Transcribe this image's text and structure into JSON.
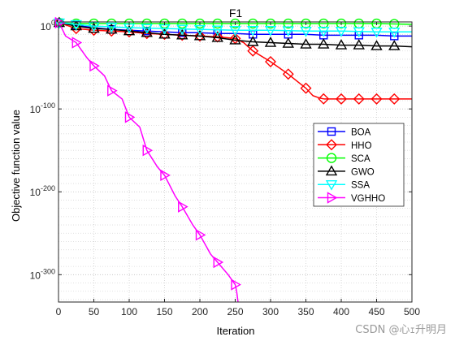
{
  "chart_data": {
    "type": "line",
    "title": "F1",
    "xlabel": "Iteration",
    "ylabel": "Objective function value",
    "xlim": [
      0,
      500
    ],
    "ylim_exponent": [
      -333,
      5
    ],
    "yscale": "log",
    "grid": "on",
    "minor_grid": "on",
    "legend_position": "right",
    "x_ticks": [
      0,
      50,
      100,
      150,
      200,
      250,
      300,
      350,
      400,
      450,
      500
    ],
    "y_tick_exponents": [
      0,
      -100,
      -200,
      -300
    ],
    "y_tick_base": "10",
    "y_tick_exponent_labels": [
      "0",
      "-100",
      "-200",
      "-300"
    ],
    "series": [
      {
        "name": "BOA",
        "color": "#0000ff",
        "marker": "square",
        "points": [
          [
            1,
            4
          ],
          [
            25,
            1
          ],
          [
            50,
            -2
          ],
          [
            75,
            -4
          ],
          [
            100,
            -5
          ],
          [
            125,
            -6
          ],
          [
            150,
            -7
          ],
          [
            175,
            -8
          ],
          [
            200,
            -8
          ],
          [
            225,
            -9
          ],
          [
            250,
            -9
          ],
          [
            275,
            -10
          ],
          [
            300,
            -10
          ],
          [
            325,
            -10
          ],
          [
            350,
            -10
          ],
          [
            375,
            -11
          ],
          [
            400,
            -11
          ],
          [
            425,
            -11
          ],
          [
            450,
            -11
          ],
          [
            475,
            -12
          ],
          [
            500,
            -12
          ]
        ],
        "marker_iterations": [
          1,
          25,
          75,
          125,
          175,
          225,
          275,
          325,
          375,
          425,
          475
        ]
      },
      {
        "name": "HHO",
        "color": "#ff0000",
        "marker": "diamond",
        "points": [
          [
            1,
            4
          ],
          [
            25,
            -3
          ],
          [
            50,
            -5
          ],
          [
            75,
            -6
          ],
          [
            100,
            -7
          ],
          [
            125,
            -9
          ],
          [
            150,
            -10
          ],
          [
            175,
            -11
          ],
          [
            200,
            -12
          ],
          [
            225,
            -13
          ],
          [
            250,
            -15
          ],
          [
            262,
            -20
          ],
          [
            275,
            -30
          ],
          [
            300,
            -43
          ],
          [
            325,
            -58
          ],
          [
            350,
            -75
          ],
          [
            360,
            -84
          ],
          [
            370,
            -87
          ],
          [
            376,
            -88
          ],
          [
            400,
            -88
          ],
          [
            425,
            -88
          ],
          [
            450,
            -88
          ],
          [
            475,
            -88
          ],
          [
            500,
            -88
          ]
        ],
        "marker_iterations": [
          1,
          25,
          50,
          75,
          100,
          125,
          150,
          175,
          200,
          225,
          250,
          275,
          300,
          325,
          350,
          375,
          400,
          425,
          450,
          475
        ]
      },
      {
        "name": "SCA",
        "color": "#00ff00",
        "marker": "circle",
        "points": [
          [
            1,
            4
          ],
          [
            25,
            3
          ],
          [
            50,
            3
          ],
          [
            100,
            3
          ],
          [
            150,
            3
          ],
          [
            200,
            3
          ],
          [
            250,
            3
          ],
          [
            300,
            3
          ],
          [
            350,
            3
          ],
          [
            400,
            3
          ],
          [
            450,
            3
          ],
          [
            500,
            2
          ]
        ],
        "marker_iterations": [
          1,
          25,
          50,
          75,
          100,
          125,
          150,
          175,
          200,
          225,
          250,
          275,
          300,
          325,
          350,
          375,
          400,
          425,
          450,
          475
        ]
      },
      {
        "name": "GWO",
        "color": "#000000",
        "marker": "triangle-up",
        "points": [
          [
            1,
            4
          ],
          [
            25,
            0
          ],
          [
            50,
            -3
          ],
          [
            75,
            -4
          ],
          [
            100,
            -6
          ],
          [
            125,
            -8
          ],
          [
            150,
            -10
          ],
          [
            175,
            -11
          ],
          [
            200,
            -12
          ],
          [
            225,
            -14
          ],
          [
            250,
            -17
          ],
          [
            275,
            -19
          ],
          [
            300,
            -20
          ],
          [
            325,
            -21
          ],
          [
            350,
            -22
          ],
          [
            375,
            -22
          ],
          [
            400,
            -23
          ],
          [
            425,
            -23
          ],
          [
            450,
            -24
          ],
          [
            475,
            -24
          ],
          [
            500,
            -25
          ]
        ],
        "marker_iterations": [
          1,
          25,
          50,
          75,
          100,
          125,
          150,
          175,
          200,
          225,
          250,
          275,
          300,
          325,
          350,
          375,
          400,
          425,
          450,
          475
        ]
      },
      {
        "name": "SSA",
        "color": "#00ffff",
        "marker": "triangle-down",
        "points": [
          [
            1,
            4
          ],
          [
            25,
            2
          ],
          [
            50,
            0
          ],
          [
            100,
            -2
          ],
          [
            150,
            -3
          ],
          [
            200,
            -4
          ],
          [
            250,
            -5
          ],
          [
            300,
            -5
          ],
          [
            350,
            -6
          ],
          [
            400,
            -6
          ],
          [
            450,
            -7
          ],
          [
            500,
            -7
          ]
        ],
        "marker_iterations": [
          1,
          25,
          50,
          75,
          100,
          125,
          150,
          175,
          200,
          225,
          250,
          275,
          300,
          325,
          350,
          375,
          400,
          425,
          450,
          475
        ]
      },
      {
        "name": "VGHHO",
        "color": "#ff00ff",
        "marker": "triangle-right",
        "points": [
          [
            1,
            4
          ],
          [
            10,
            -12
          ],
          [
            25,
            -20
          ],
          [
            40,
            -38
          ],
          [
            50,
            -48
          ],
          [
            65,
            -60
          ],
          [
            75,
            -78
          ],
          [
            90,
            -88
          ],
          [
            100,
            -110
          ],
          [
            115,
            -122
          ],
          [
            125,
            -150
          ],
          [
            140,
            -170
          ],
          [
            150,
            -180
          ],
          [
            165,
            -205
          ],
          [
            175,
            -218
          ],
          [
            190,
            -240
          ],
          [
            200,
            -252
          ],
          [
            215,
            -275
          ],
          [
            225,
            -285
          ],
          [
            240,
            -300
          ],
          [
            250,
            -312
          ],
          [
            252,
            -320
          ],
          [
            254,
            -333
          ]
        ],
        "marker_iterations": [
          1,
          25,
          50,
          75,
          100,
          125,
          150,
          175,
          200,
          225,
          250
        ]
      }
    ]
  },
  "watermark": "CSDN @心ｪ升明月"
}
